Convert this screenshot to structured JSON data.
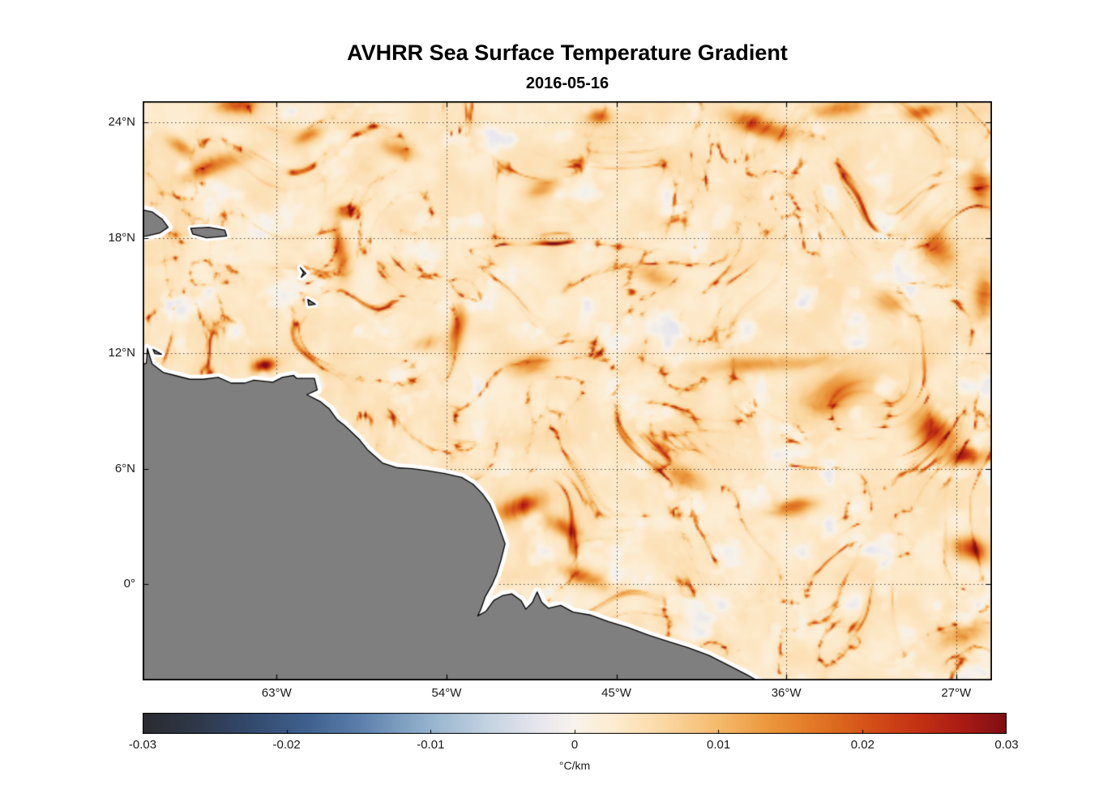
{
  "figure": {
    "title": "AVHRR Sea Surface Temperature Gradient",
    "date": "2016-05-16"
  },
  "chart_data": {
    "type": "heatmap",
    "title": "AVHRR Sea Surface Temperature Gradient",
    "subtitle": "2016-05-16",
    "projection": "longitude-latitude map, northeastern South America and tropical Atlantic",
    "x_axis": {
      "kind": "longitude_west",
      "range_left_to_right_degW": [
        70.1,
        25.1
      ],
      "grid": "dotted",
      "ticks": [
        {
          "value": 63,
          "label": "63°W"
        },
        {
          "value": 54,
          "label": "54°W"
        },
        {
          "value": 45,
          "label": "45°W"
        },
        {
          "value": 36,
          "label": "36°W"
        },
        {
          "value": 27,
          "label": "27°W"
        }
      ]
    },
    "y_axis": {
      "kind": "latitude_north",
      "range_top_to_bottom_degN": [
        25.1,
        -5.0
      ],
      "grid": "dotted",
      "ticks": [
        {
          "value": 24,
          "label": "24°N"
        },
        {
          "value": 18,
          "label": "18°N"
        },
        {
          "value": 12,
          "label": "12°N"
        },
        {
          "value": 6,
          "label": "6°N"
        },
        {
          "value": 0,
          "label": "0°"
        }
      ]
    },
    "colorbar": {
      "label": "°C/km",
      "min": -0.03,
      "max": 0.03,
      "ticks": [
        {
          "value": -0.03,
          "label": "-0.03"
        },
        {
          "value": -0.02,
          "label": "-0.02"
        },
        {
          "value": -0.01,
          "label": "-0.01"
        },
        {
          "value": 0,
          "label": "0"
        },
        {
          "value": 0.01,
          "label": "0.01"
        },
        {
          "value": 0.02,
          "label": "0.02"
        },
        {
          "value": 0.03,
          "label": "0.03"
        }
      ],
      "stops": [
        [
          0.0,
          "#2b2b30"
        ],
        [
          0.06,
          "#2e3748"
        ],
        [
          0.125,
          "#334a6e"
        ],
        [
          0.19,
          "#3f608e"
        ],
        [
          0.25,
          "#5b7eab"
        ],
        [
          0.33,
          "#94b2cd"
        ],
        [
          0.4,
          "#c4d3e1"
        ],
        [
          0.46,
          "#e8e6ee"
        ],
        [
          0.5,
          "#f8f3ea"
        ],
        [
          0.545,
          "#fdecd0"
        ],
        [
          0.6,
          "#fbd9a6"
        ],
        [
          0.667,
          "#f4ba6c"
        ],
        [
          0.73,
          "#ea9439"
        ],
        [
          0.8,
          "#dd6b1f"
        ],
        [
          0.845,
          "#d34d18"
        ],
        [
          0.9,
          "#c23014"
        ],
        [
          0.95,
          "#a81b14"
        ],
        [
          1.0,
          "#7f0e14"
        ]
      ]
    },
    "field": {
      "description": "SST gradient magnitude field: pale cream background (~0.002-0.006 °C/km) with faint lavender low/negative patches and sparse curved orange-red frontal filaments up to 0.03 °C/km",
      "seed": 516,
      "base": 0.001,
      "mottle_amp": 0.005,
      "ridge_amp": 0.005,
      "filament_amp": 0.022,
      "negative_threshold": 0.4,
      "negative_amp": 0.02,
      "warp": 3.0,
      "hotspots": [
        [
          63.65,
          11.35,
          0.55,
          0.3,
          10,
          0.03
        ],
        [
          66.4,
          21.7,
          1.5,
          0.45,
          20,
          0.015
        ],
        [
          68.2,
          22.8,
          0.7,
          0.35,
          -35,
          0.013
        ],
        [
          65.1,
          24.85,
          1.0,
          0.4,
          0,
          0.017
        ],
        [
          61.3,
          23.3,
          0.8,
          0.35,
          25,
          0.012
        ],
        [
          59.6,
          17.3,
          0.4,
          1.3,
          8,
          0.017
        ],
        [
          59.3,
          19.3,
          0.55,
          0.4,
          -10,
          0.013
        ],
        [
          53.4,
          13.3,
          0.38,
          1.3,
          -12,
          0.016
        ],
        [
          49.5,
          11.4,
          1.1,
          0.5,
          15,
          0.013
        ],
        [
          45.9,
          24.3,
          0.6,
          0.35,
          0,
          0.014
        ],
        [
          37.4,
          23.8,
          1.6,
          0.5,
          -18,
          0.019
        ],
        [
          33.2,
          24.7,
          1.3,
          0.45,
          8,
          0.015
        ],
        [
          28.6,
          24.6,
          0.9,
          0.35,
          10,
          0.014
        ],
        [
          25.7,
          20.7,
          0.55,
          0.9,
          10,
          0.017
        ],
        [
          30.6,
          14.6,
          0.9,
          0.5,
          -25,
          0.012
        ],
        [
          27.9,
          17.4,
          0.7,
          1.1,
          30,
          0.013
        ],
        [
          25.5,
          15.0,
          0.5,
          1.2,
          0,
          0.015
        ],
        [
          37.0,
          11.45,
          3.2,
          0.4,
          3,
          0.012
        ],
        [
          33.4,
          10.0,
          1.6,
          0.9,
          25,
          0.015
        ],
        [
          28.3,
          8.0,
          1.2,
          0.9,
          -30,
          0.019
        ],
        [
          26.4,
          6.6,
          0.9,
          0.45,
          5,
          0.026
        ],
        [
          50.1,
          4.0,
          1.1,
          0.5,
          20,
          0.023
        ],
        [
          47.8,
          2.9,
          0.9,
          0.4,
          -30,
          0.013
        ],
        [
          41.6,
          5.6,
          1.4,
          0.5,
          -20,
          0.011
        ],
        [
          35.5,
          4.0,
          1.0,
          0.4,
          8,
          0.019
        ],
        [
          26.3,
          1.8,
          0.9,
          0.55,
          -15,
          0.025
        ],
        [
          46.6,
          0.3,
          1.3,
          0.4,
          -18,
          0.013
        ],
        [
          26.6,
          -2.7,
          1.0,
          0.5,
          20,
          0.013
        ],
        [
          55.0,
          12.5,
          0.8,
          0.4,
          15,
          0.01
        ],
        [
          43.0,
          16.0,
          0.9,
          0.45,
          -20,
          0.01
        ],
        [
          49.0,
          20.5,
          0.8,
          0.4,
          15,
          0.01
        ],
        [
          56.5,
          22.5,
          0.9,
          0.4,
          -15,
          0.011
        ]
      ]
    },
    "land": {
      "fill": "#7f7f7f",
      "coast": "#000000",
      "halo": "#ffffff",
      "features": [
        {
          "name": "south-america-mainland",
          "type": "coast_open",
          "points": [
            [
              70.2,
              11.35
            ],
            [
              69.9,
              11.5
            ],
            [
              69.85,
              12.25
            ],
            [
              69.6,
              11.45
            ],
            [
              69.0,
              11.0
            ],
            [
              68.4,
              10.85
            ],
            [
              67.6,
              10.65
            ],
            [
              66.9,
              10.65
            ],
            [
              66.1,
              10.75
            ],
            [
              65.4,
              10.45
            ],
            [
              64.7,
              10.45
            ],
            [
              64.2,
              10.6
            ],
            [
              63.7,
              10.55
            ],
            [
              63.2,
              10.5
            ],
            [
              62.7,
              10.75
            ],
            [
              62.1,
              10.85
            ],
            [
              61.95,
              10.7
            ],
            [
              61.0,
              10.7
            ],
            [
              60.85,
              10.1
            ],
            [
              61.4,
              9.85
            ],
            [
              60.7,
              9.5
            ],
            [
              60.2,
              9.1
            ],
            [
              59.8,
              8.55
            ],
            [
              59.4,
              8.25
            ],
            [
              58.6,
              7.5
            ],
            [
              58.2,
              7.0
            ],
            [
              57.4,
              6.3
            ],
            [
              56.6,
              6.05
            ],
            [
              55.8,
              6.0
            ],
            [
              55.0,
              5.9
            ],
            [
              54.1,
              5.75
            ],
            [
              53.2,
              5.55
            ],
            [
              52.6,
              5.2
            ],
            [
              52.1,
              4.7
            ],
            [
              51.7,
              4.15
            ],
            [
              51.3,
              3.2
            ],
            [
              50.9,
              2.1
            ],
            [
              51.1,
              1.3
            ],
            [
              51.35,
              0.5
            ],
            [
              51.6,
              -0.05
            ],
            [
              51.95,
              -0.65
            ],
            [
              52.2,
              -1.35
            ],
            [
              52.35,
              -1.65
            ],
            [
              51.9,
              -1.4
            ],
            [
              51.5,
              -0.85
            ],
            [
              51.05,
              -0.6
            ],
            [
              50.55,
              -0.5
            ],
            [
              50.05,
              -0.85
            ],
            [
              49.8,
              -1.3
            ],
            [
              49.45,
              -0.95
            ],
            [
              49.2,
              -0.4
            ],
            [
              48.95,
              -0.95
            ],
            [
              48.6,
              -1.25
            ],
            [
              47.95,
              -1.1
            ],
            [
              47.3,
              -1.45
            ],
            [
              46.4,
              -1.6
            ],
            [
              45.4,
              -1.95
            ],
            [
              44.4,
              -2.25
            ],
            [
              43.3,
              -2.65
            ],
            [
              42.2,
              -3.0
            ],
            [
              41.2,
              -3.3
            ],
            [
              40.1,
              -3.7
            ],
            [
              39.0,
              -4.25
            ],
            [
              38.0,
              -4.75
            ],
            [
              37.4,
              -5.1
            ],
            [
              37.2,
              -5.4
            ]
          ],
          "closure": [
            [
              70.4,
              -5.4
            ]
          ]
        },
        {
          "name": "hispaniola",
          "type": "coast_open",
          "points": [
            [
              70.3,
              19.5
            ],
            [
              69.6,
              19.35
            ],
            [
              69.05,
              18.95
            ],
            [
              68.75,
              18.55
            ],
            [
              69.2,
              18.25
            ],
            [
              69.9,
              18.1
            ],
            [
              70.3,
              18.05
            ]
          ],
          "closure": []
        },
        {
          "name": "puerto-rico",
          "type": "island",
          "points": [
            [
              67.55,
              18.5
            ],
            [
              66.6,
              18.55
            ],
            [
              65.75,
              18.4
            ],
            [
              65.65,
              18.1
            ],
            [
              66.7,
              18.0
            ],
            [
              67.45,
              18.2
            ]
          ]
        },
        {
          "name": "guadeloupe",
          "type": "island",
          "points": [
            [
              61.75,
              16.45
            ],
            [
              61.45,
              16.15
            ],
            [
              61.7,
              15.95
            ],
            [
              61.58,
              16.2
            ]
          ]
        },
        {
          "name": "martinique",
          "type": "island",
          "points": [
            [
              61.35,
              14.8
            ],
            [
              60.95,
              14.55
            ],
            [
              61.3,
              14.5
            ]
          ]
        },
        {
          "name": "curacao",
          "type": "island",
          "points": [
            [
              69.55,
              12.2
            ],
            [
              69.1,
              11.95
            ],
            [
              69.45,
              11.98
            ]
          ]
        }
      ]
    }
  },
  "style": {
    "ocean_base": "#fdf2e1",
    "grid_color": "#3d3d3d",
    "axis_color": "#000000",
    "text_color": "#1a1a1a",
    "background": "#ffffff"
  }
}
